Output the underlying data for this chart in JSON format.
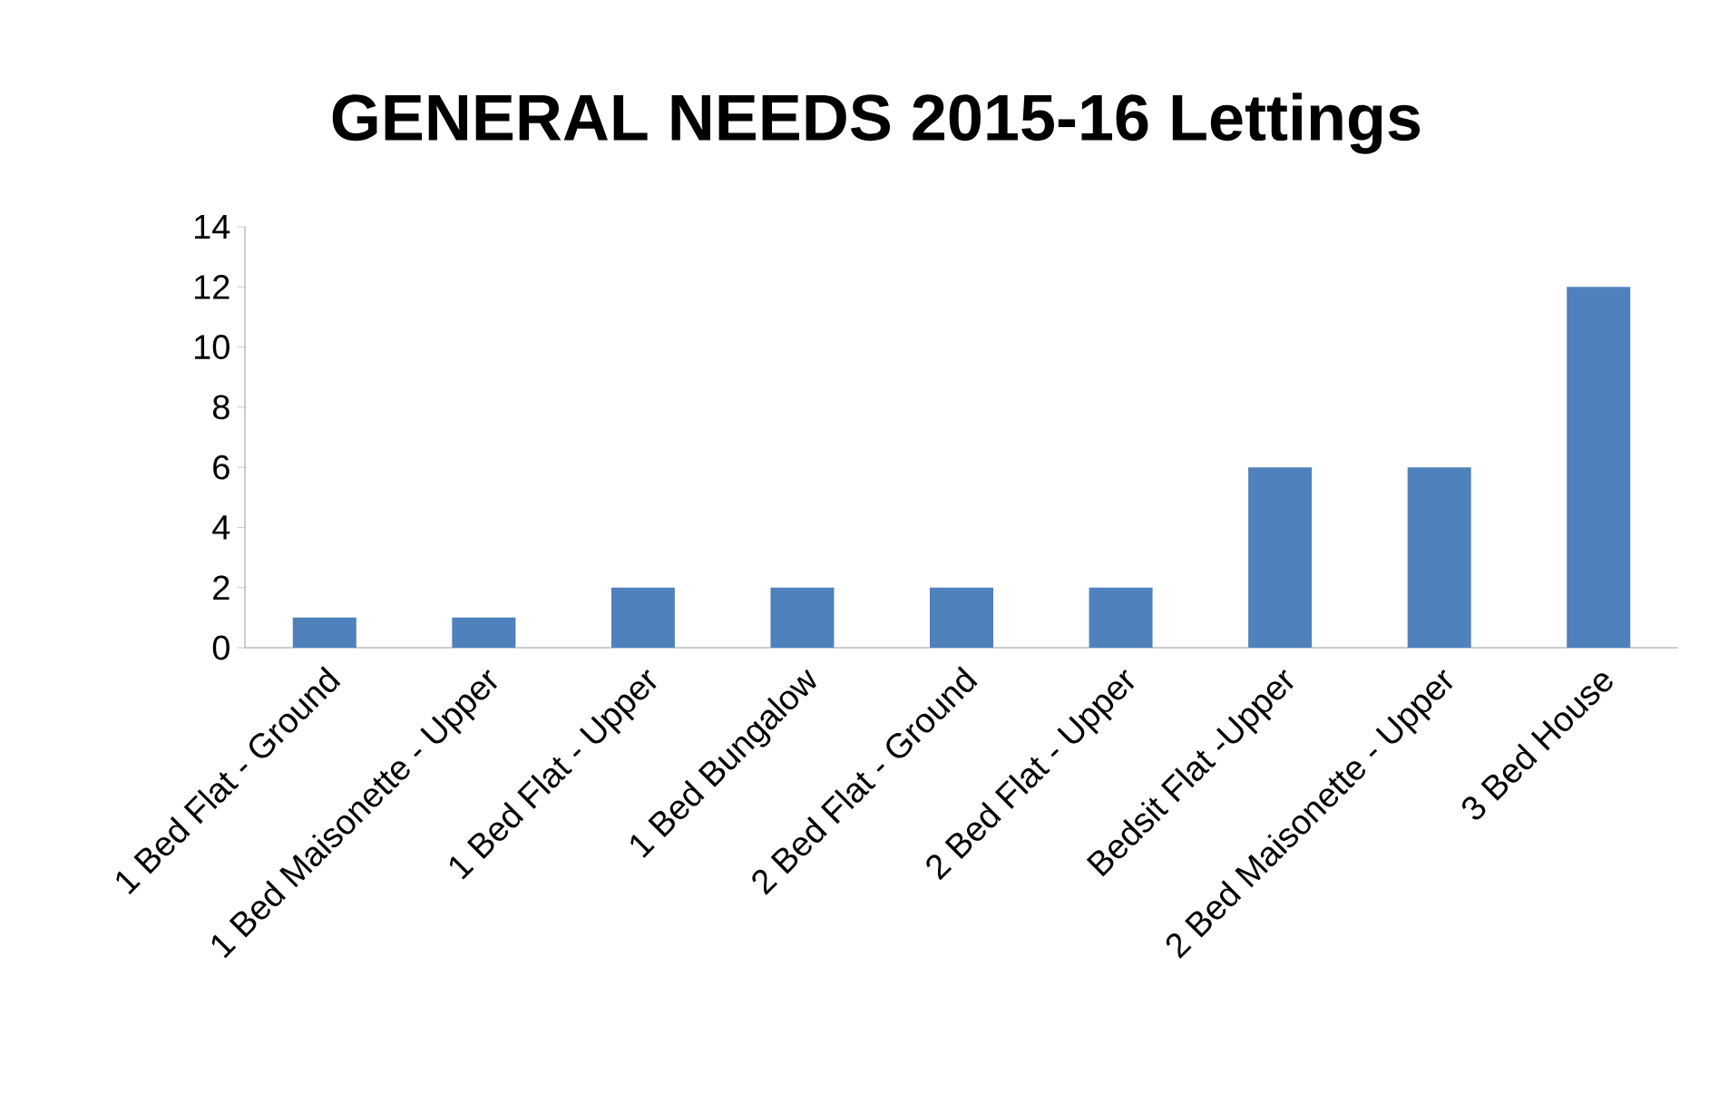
{
  "chart_data": {
    "type": "bar",
    "title": "GENERAL NEEDS 2015-16 Lettings",
    "categories": [
      "1 Bed Flat - Ground",
      "1 Bed Maisonette - Upper",
      "1 Bed Flat - Upper",
      "1 Bed Bungalow",
      "2 Bed Flat - Ground",
      "2 Bed Flat - Upper",
      "Bedsit Flat -Upper",
      "2 Bed Maisonette - Upper",
      "3 Bed House"
    ],
    "values": [
      1,
      1,
      2,
      2,
      2,
      2,
      6,
      6,
      12
    ],
    "color": "#4f81bd",
    "ylim": [
      0,
      14
    ],
    "yticks": [
      0,
      2,
      4,
      6,
      8,
      10,
      12,
      14
    ],
    "grid": false
  }
}
